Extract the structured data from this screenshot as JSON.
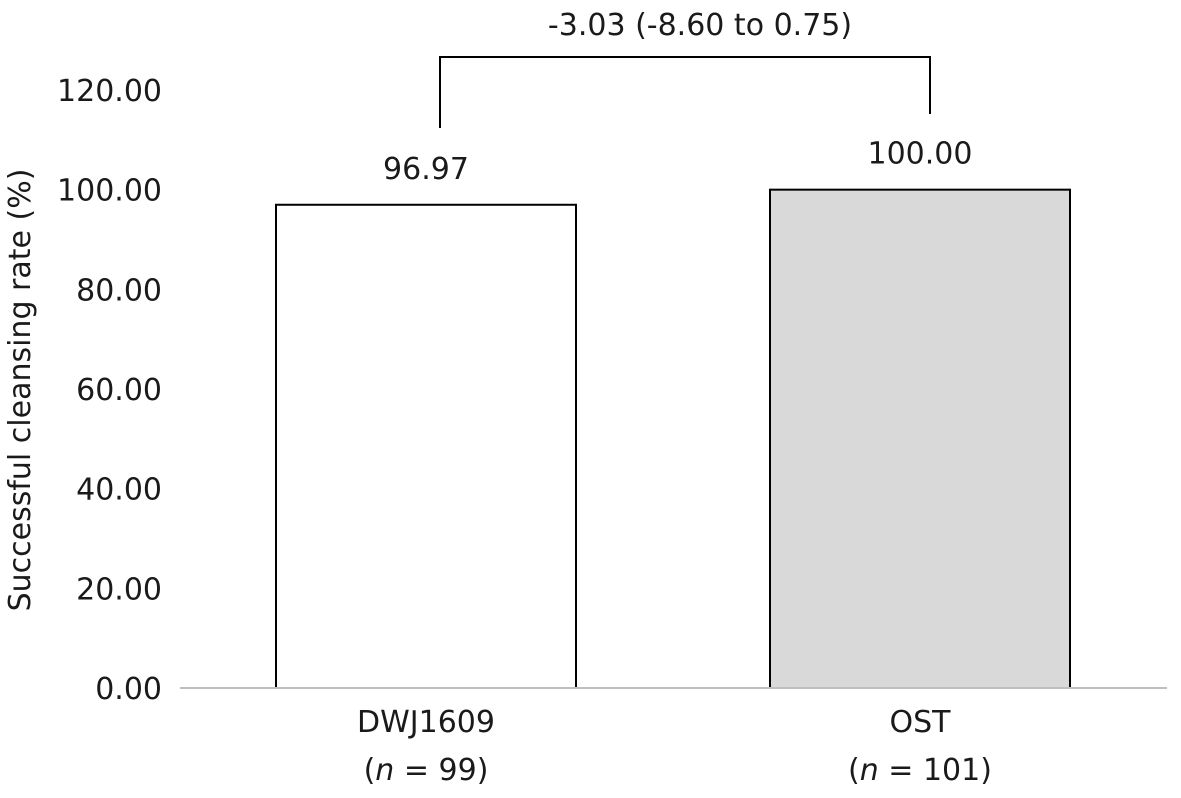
{
  "chart_data": {
    "type": "bar",
    "title": "",
    "xlabel": "",
    "ylabel": "Successful cleansing rate (%)",
    "ylim": [
      0,
      120
    ],
    "yticks": [
      "0.00",
      "20.00",
      "40.00",
      "60.00",
      "80.00",
      "100.00",
      "120.00"
    ],
    "categories": [
      {
        "name": "DWJ1609",
        "n_prefix": "(",
        "n_var": "n",
        "n_rest": " = 99)"
      },
      {
        "name": "OST",
        "n_prefix": "(",
        "n_var": "n",
        "n_rest": " = 101)"
      }
    ],
    "values": [
      96.97,
      100.0
    ],
    "value_labels": [
      "96.97",
      "100.00"
    ],
    "bar_colors": [
      "#ffffff",
      "#d9d9d9"
    ],
    "grid": false,
    "annotation": {
      "text": "-3.03 (-8.60 to 0.75)",
      "type": "bracket",
      "from": 0,
      "to": 1
    }
  }
}
